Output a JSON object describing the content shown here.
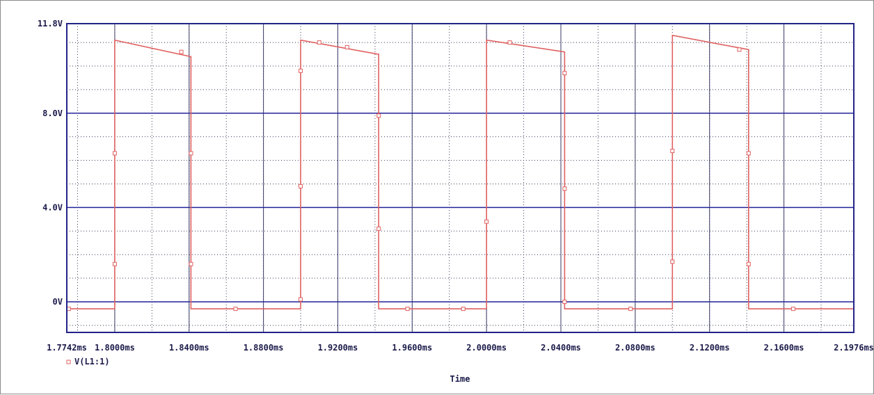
{
  "chart_data": {
    "type": "line",
    "title": "",
    "xlabel": "Time",
    "ylabel": "",
    "xlim": [
      1.7742,
      2.1976
    ],
    "ylim": [
      -1.3,
      11.8
    ],
    "x_unit": "ms",
    "grid": true,
    "y_ticks": [
      {
        "value": 0,
        "label": "0V"
      },
      {
        "value": 4,
        "label": "4.0V"
      },
      {
        "value": 8,
        "label": "8.0V"
      },
      {
        "value": 11.8,
        "label": "11.8V"
      }
    ],
    "x_ticks": [
      {
        "value": 1.7742,
        "label": "1.7742ms"
      },
      {
        "value": 1.8,
        "label": "1.8000ms"
      },
      {
        "value": 1.84,
        "label": "1.8400ms"
      },
      {
        "value": 1.88,
        "label": "1.8800ms"
      },
      {
        "value": 1.92,
        "label": "1.9200ms"
      },
      {
        "value": 1.96,
        "label": "1.9600ms"
      },
      {
        "value": 2.0,
        "label": "2.0000ms"
      },
      {
        "value": 2.04,
        "label": "2.0400ms"
      },
      {
        "value": 2.08,
        "label": "2.0800ms"
      },
      {
        "value": 2.12,
        "label": "2.1200ms"
      },
      {
        "value": 2.16,
        "label": "2.1600ms"
      },
      {
        "value": 2.1976,
        "label": "2.1976ms"
      }
    ],
    "legend": "bottom-left",
    "series": [
      {
        "name": "V(L1:1)",
        "color": "#e06060",
        "x": [
          1.7742,
          1.8,
          1.8,
          1.841,
          1.841,
          1.9,
          1.9,
          1.942,
          1.942,
          2.0,
          2.0,
          2.042,
          2.042,
          2.1,
          2.1,
          2.141,
          2.141,
          2.1976
        ],
        "y": [
          -0.3,
          -0.3,
          11.1,
          10.4,
          -0.3,
          -0.3,
          11.1,
          10.5,
          -0.3,
          -0.3,
          11.1,
          10.6,
          -0.3,
          -0.3,
          11.3,
          10.7,
          -0.3,
          -0.3
        ],
        "markers": [
          [
            1.7752,
            -0.3
          ],
          [
            1.8,
            6.3
          ],
          [
            1.8,
            1.6
          ],
          [
            1.8358,
            10.6
          ],
          [
            1.841,
            6.3
          ],
          [
            1.841,
            1.6
          ],
          [
            1.865,
            -0.3
          ],
          [
            1.9,
            9.8
          ],
          [
            1.9,
            4.9
          ],
          [
            1.9,
            0.1
          ],
          [
            1.91,
            11
          ],
          [
            1.925,
            10.8
          ],
          [
            1.942,
            7.9
          ],
          [
            1.942,
            3.1
          ],
          [
            1.9575,
            -0.3
          ],
          [
            1.9875,
            -0.3
          ],
          [
            2.0,
            3.4
          ],
          [
            2.0125,
            11
          ],
          [
            2.042,
            9.7
          ],
          [
            2.042,
            4.8
          ],
          [
            2.042,
            0
          ],
          [
            2.0775,
            -0.3
          ],
          [
            2.1,
            6.4
          ],
          [
            2.1,
            1.7
          ],
          [
            2.136,
            10.7
          ],
          [
            2.141,
            6.3
          ],
          [
            2.141,
            1.6
          ],
          [
            2.165,
            -0.3
          ]
        ]
      }
    ]
  }
}
